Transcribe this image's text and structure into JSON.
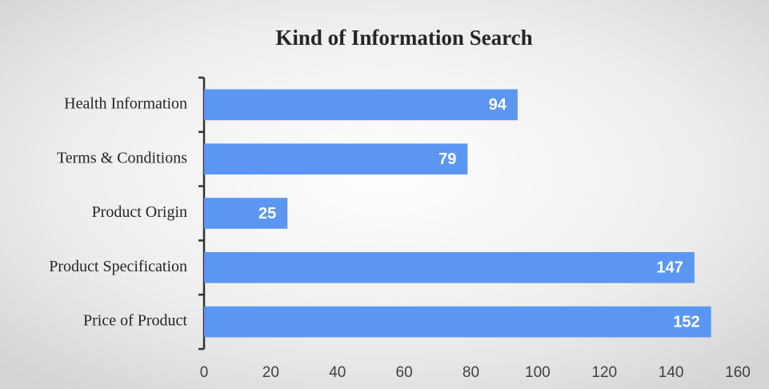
{
  "chart_data": {
    "type": "bar",
    "orientation": "horizontal",
    "title": "Kind of Information Search",
    "categories": [
      "Health Information",
      "Terms & Conditions",
      "Product Origin",
      "Product Specification",
      "Price of Product"
    ],
    "values": [
      94,
      79,
      25,
      147,
      152
    ],
    "color": "#5b97f2",
    "xlim": [
      0,
      160
    ],
    "xticks": [
      0,
      20,
      40,
      60,
      80,
      100,
      120,
      140,
      160
    ],
    "grid": false
  }
}
